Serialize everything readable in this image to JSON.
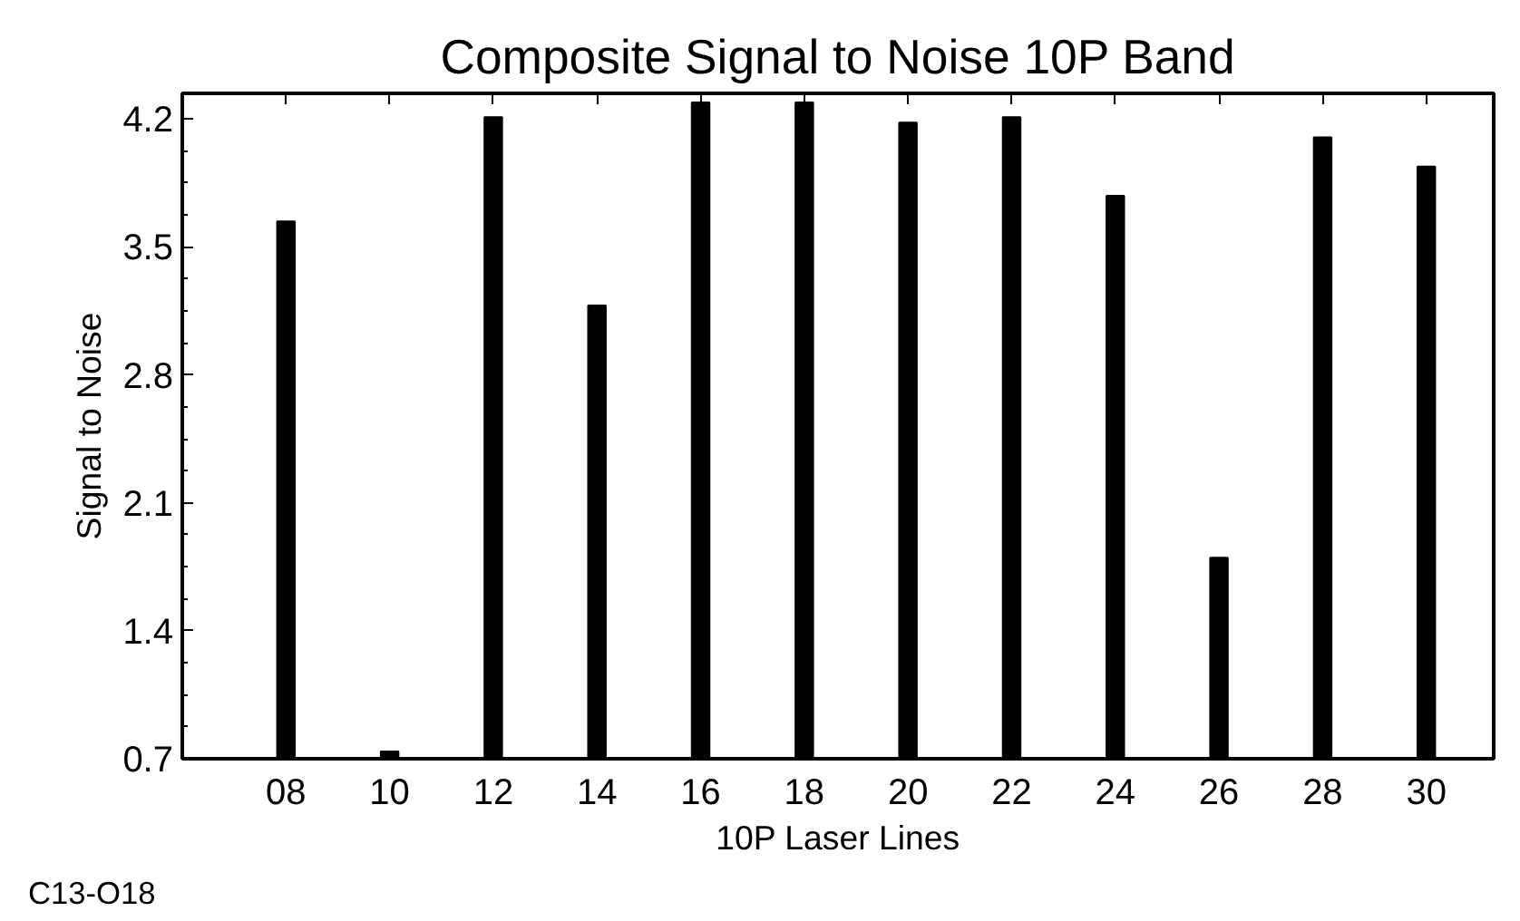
{
  "chart_data": {
    "type": "bar",
    "title": "Composite Signal to Noise 10P Band",
    "xlabel": "10P Laser Lines",
    "ylabel": "Signal to Noise",
    "categories": [
      "08",
      "10",
      "12",
      "14",
      "16",
      "18",
      "20",
      "22",
      "24",
      "26",
      "28",
      "30"
    ],
    "values": [
      3.64,
      0.74,
      4.21,
      3.18,
      4.29,
      4.29,
      4.18,
      4.21,
      3.78,
      1.8,
      4.1,
      3.94
    ],
    "color": "#000000",
    "ylim": [
      0.7,
      4.34
    ],
    "yticks": [
      0.7,
      1.4,
      2.1,
      2.8,
      3.5,
      4.2
    ],
    "grid": false,
    "annotations": [
      "C13-O18"
    ]
  }
}
